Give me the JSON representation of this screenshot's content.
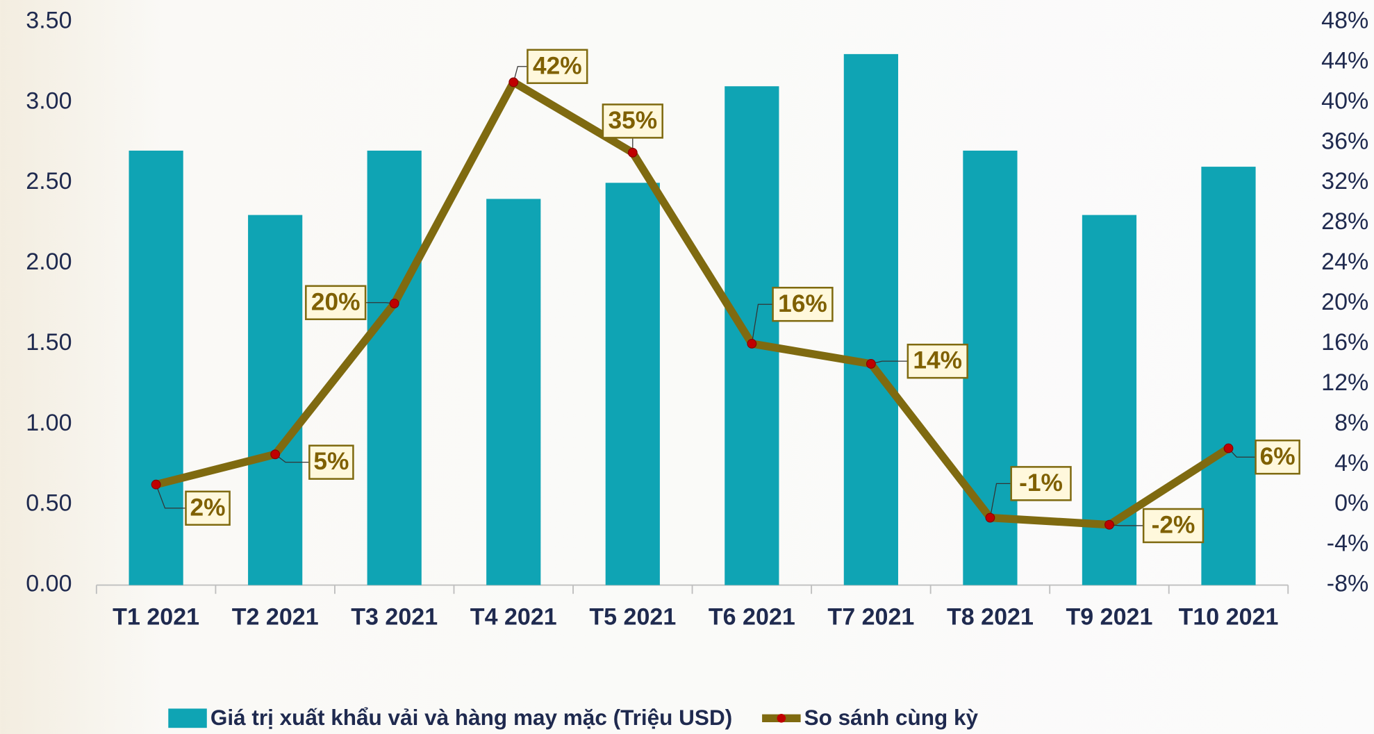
{
  "chart_data": {
    "type": "bar_line",
    "categories": [
      "T1 2021",
      "T2 2021",
      "T3 2021",
      "T4 2021",
      "T5 2021",
      "T6 2021",
      "T7 2021",
      "T8 2021",
      "T9 2021",
      "T10 2021"
    ],
    "series": [
      {
        "name": "Giá trị xuất khẩu vải và hàng may mặc (Triệu USD)",
        "type": "bar",
        "color": "#0fa4b4",
        "values": [
          2.7,
          2.3,
          2.7,
          2.4,
          2.5,
          3.1,
          3.3,
          2.7,
          2.3,
          2.6
        ]
      },
      {
        "name": "So sánh cùng kỳ",
        "type": "line",
        "axis": "y2",
        "color": "#7f6a10",
        "marker_color": "#c00000",
        "values": [
          2,
          5,
          20,
          42,
          35,
          16,
          14,
          -1.3,
          -2,
          5.6
        ],
        "value_labels": [
          "2%",
          "5%",
          "20%",
          "42%",
          "35%",
          "16%",
          "14%",
          "-1%",
          "-2%",
          "6%"
        ]
      }
    ],
    "ylim": [
      0,
      3.5
    ],
    "yticks": [
      {
        "value": 0,
        "label": "0.00"
      },
      {
        "value": 0.5,
        "label": "0.50"
      },
      {
        "value": 1,
        "label": "1.00"
      },
      {
        "value": 1.5,
        "label": "1.50"
      },
      {
        "value": 2,
        "label": "2.00"
      },
      {
        "value": 2.5,
        "label": "2.50"
      },
      {
        "value": 3,
        "label": "3.00"
      },
      {
        "value": 3.5,
        "label": "3.50"
      }
    ],
    "y2lim": [
      -8,
      48
    ],
    "y2ticks": [
      {
        "value": -8,
        "label": "-8%"
      },
      {
        "value": -4,
        "label": "-4%"
      },
      {
        "value": 0,
        "label": "0%"
      },
      {
        "value": 4,
        "label": "4%"
      },
      {
        "value": 8,
        "label": "8%"
      },
      {
        "value": 12,
        "label": "12%"
      },
      {
        "value": 16,
        "label": "16%"
      },
      {
        "value": 20,
        "label": "20%"
      },
      {
        "value": 24,
        "label": "24%"
      },
      {
        "value": 28,
        "label": "28%"
      },
      {
        "value": 32,
        "label": "32%"
      },
      {
        "value": 36,
        "label": "36%"
      },
      {
        "value": 40,
        "label": "40%"
      },
      {
        "value": 44,
        "label": "44%"
      },
      {
        "value": 48,
        "label": "48%"
      }
    ],
    "legend": "bottom"
  }
}
